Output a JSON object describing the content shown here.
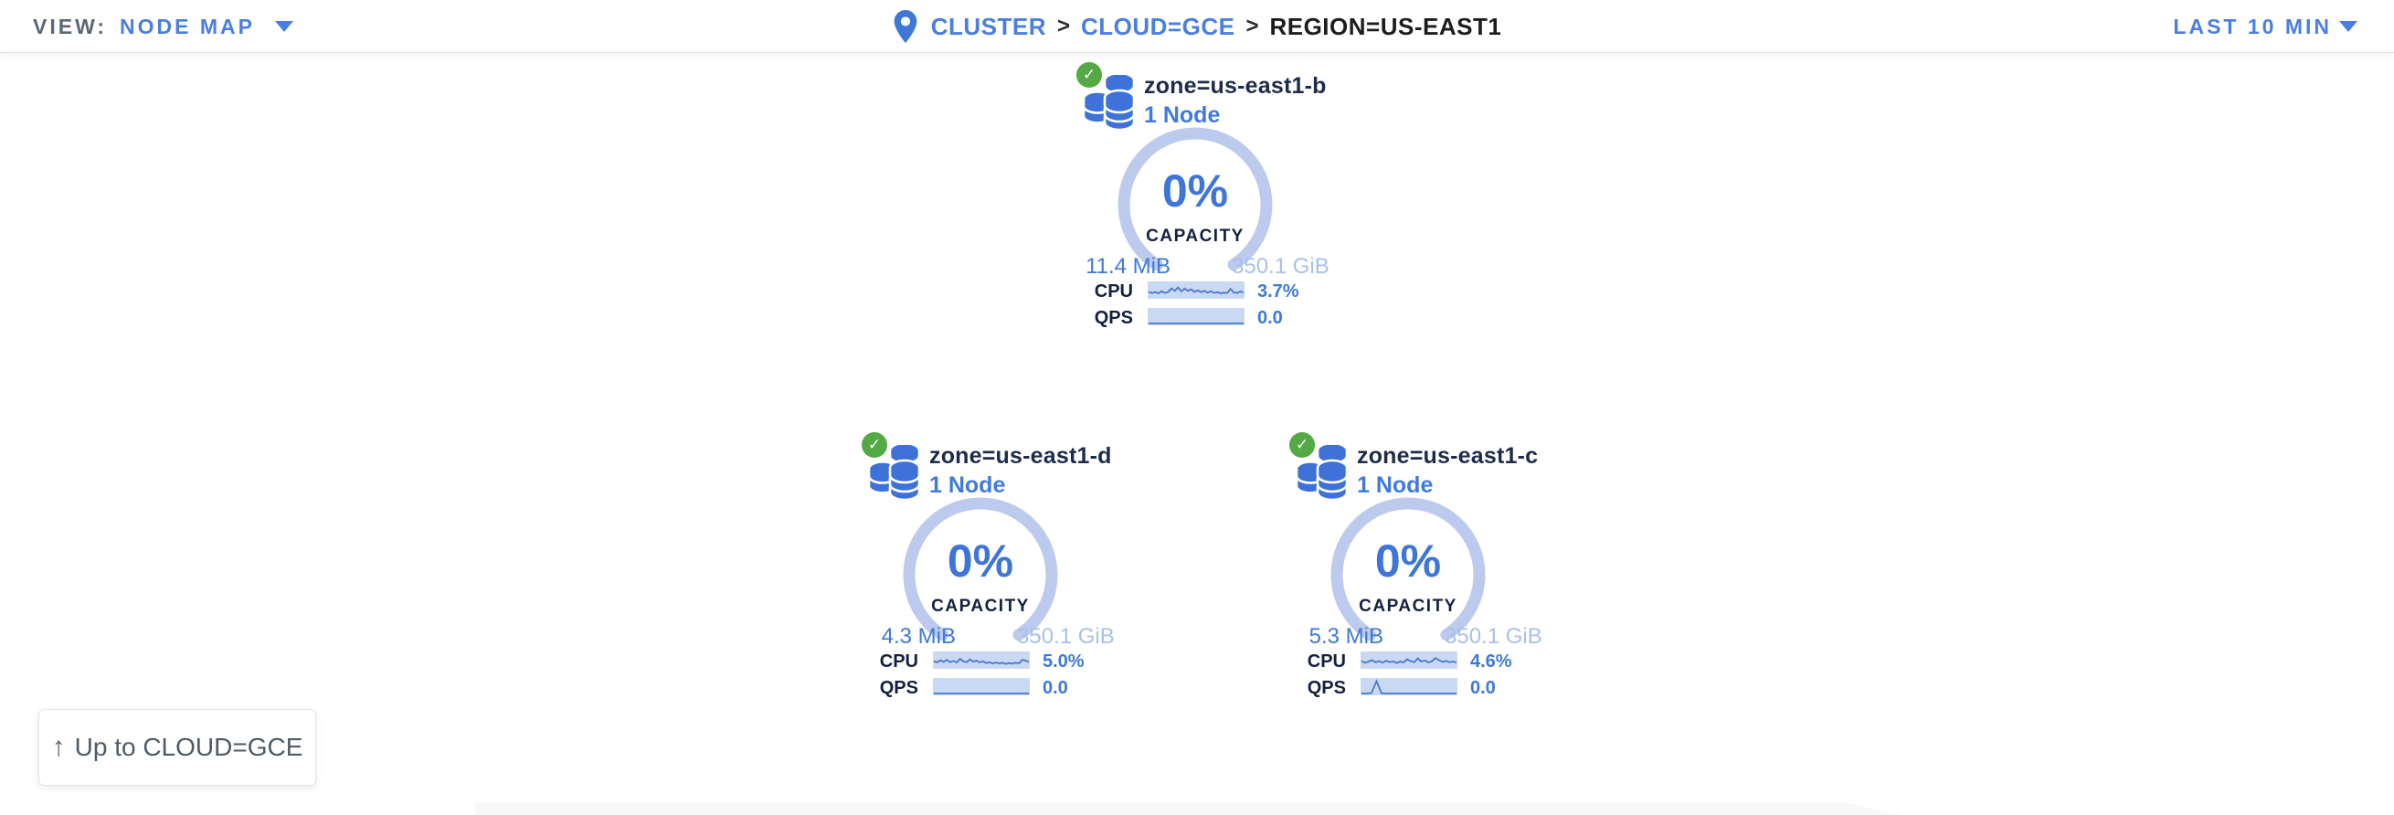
{
  "topbar": {
    "view_label": "VIEW:",
    "view_value": "NODE MAP",
    "breadcrumb_separator": ">",
    "breadcrumb": [
      {
        "label": "CLUSTER"
      },
      {
        "label": "CLOUD=GCE"
      },
      {
        "label": "REGION=US-EAST1"
      }
    ],
    "time_range": "LAST 10 MIN"
  },
  "icons": {
    "checkmark": "✓",
    "up_arrow": "↑"
  },
  "colors": {
    "link_blue": "#4a7ee0",
    "value_blue": "#3e79d8",
    "ring_blue": "#bccbed",
    "total_blue": "#a9c0ea",
    "spark_bg": "#c9d8f3",
    "spark_line": "#4a78ca",
    "node_icon_blue": "#3f72d9",
    "status_green": "#53a943",
    "title_navy": "#1d2c4a"
  },
  "cards": [
    {
      "zone": "zone=us-east1-b",
      "nodes": "1 Node",
      "capacity_pct": "0%",
      "capacity_label": "CAPACITY",
      "capacity_used": "11.4 MiB",
      "capacity_total": "350.1 GiB",
      "cpu_label": "CPU",
      "cpu_value": "3.7%",
      "qps_label": "QPS",
      "qps_value": "0.0",
      "cpu_spark": [
        0.38,
        0.3,
        0.36,
        0.28,
        0.42,
        0.3,
        0.38,
        0.62,
        0.45,
        0.68,
        0.42,
        0.6,
        0.45,
        0.55,
        0.38,
        0.48,
        0.35,
        0.45,
        0.32,
        0.42,
        0.3,
        0.36,
        0.28,
        0.32,
        0.3,
        0.58,
        0.34,
        0.3,
        0.4,
        0.34
      ],
      "qps_spark": [
        0.03,
        0.03,
        0.03,
        0.03,
        0.03,
        0.03,
        0.03,
        0.03,
        0.03,
        0.03,
        0.03,
        0.03,
        0.03,
        0.03,
        0.03,
        0.03,
        0.03,
        0.03,
        0.03,
        0.03
      ]
    },
    {
      "zone": "zone=us-east1-d",
      "nodes": "1 Node",
      "capacity_pct": "0%",
      "capacity_label": "CAPACITY",
      "capacity_used": "4.3 MiB",
      "capacity_total": "350.1 GiB",
      "cpu_label": "CPU",
      "cpu_value": "5.0%",
      "qps_label": "QPS",
      "qps_value": "0.0",
      "cpu_spark": [
        0.42,
        0.35,
        0.48,
        0.38,
        0.52,
        0.36,
        0.44,
        0.34,
        0.58,
        0.42,
        0.36,
        0.55,
        0.4,
        0.46,
        0.34,
        0.42,
        0.3,
        0.36,
        0.26,
        0.34,
        0.28,
        0.32,
        0.24,
        0.3,
        0.26,
        0.32,
        0.28,
        0.52,
        0.46,
        0.38
      ],
      "qps_spark": [
        0.03,
        0.03,
        0.03,
        0.03,
        0.03,
        0.03,
        0.03,
        0.03,
        0.03,
        0.03,
        0.03,
        0.03,
        0.03,
        0.03,
        0.03,
        0.03,
        0.03,
        0.03,
        0.03,
        0.03
      ]
    },
    {
      "zone": "zone=us-east1-c",
      "nodes": "1 Node",
      "capacity_pct": "0%",
      "capacity_label": "CAPACITY",
      "capacity_used": "5.3 MiB",
      "capacity_total": "350.1 GiB",
      "cpu_label": "CPU",
      "cpu_value": "4.6%",
      "qps_label": "QPS",
      "qps_value": "0.0",
      "cpu_spark": [
        0.44,
        0.32,
        0.4,
        0.5,
        0.36,
        0.44,
        0.32,
        0.46,
        0.36,
        0.42,
        0.3,
        0.4,
        0.34,
        0.56,
        0.42,
        0.36,
        0.62,
        0.4,
        0.48,
        0.34,
        0.42,
        0.64,
        0.5,
        0.38,
        0.44,
        0.36,
        0.4,
        0.34
      ],
      "qps_spark": [
        0.03,
        0.03,
        0.06,
        0.88,
        0.05,
        0.03,
        0.03,
        0.03,
        0.03,
        0.03,
        0.03,
        0.03,
        0.03,
        0.03,
        0.03,
        0.03,
        0.03,
        0.03,
        0.03,
        0.03
      ]
    }
  ],
  "up_button": {
    "label": "Up to CLOUD=GCE"
  }
}
